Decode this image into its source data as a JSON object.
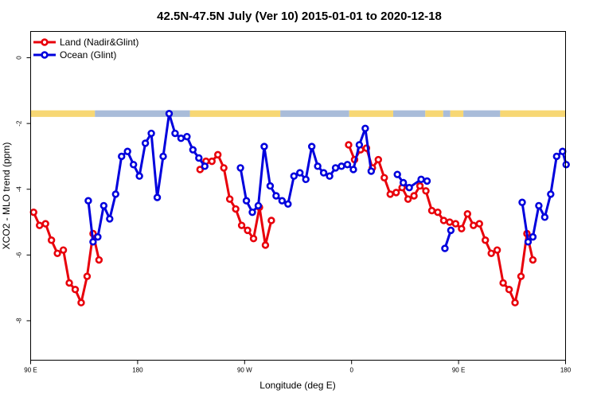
{
  "chart_data": {
    "type": "line",
    "title": "42.5N-47.5N July (Ver 10)   2015-01-01 to 2020-12-18",
    "xlabel": "Longitude (deg E)",
    "ylabel": "XCO2 - MLO trend (ppm)",
    "xlim": [
      90,
      540
    ],
    "ylim": [
      -9.2,
      0.8
    ],
    "x_ticks": [
      {
        "value": 90,
        "label": "90 E"
      },
      {
        "value": 180,
        "label": "180"
      },
      {
        "value": 270,
        "label": "90 W"
      },
      {
        "value": 360,
        "label": "0"
      },
      {
        "value": 450,
        "label": "90 E"
      },
      {
        "value": 540,
        "label": "180"
      }
    ],
    "y_ticks": [
      {
        "value": 0,
        "label": "0"
      },
      {
        "value": -2,
        "label": "-2"
      },
      {
        "value": -4,
        "label": "-4"
      },
      {
        "value": -6,
        "label": "-6"
      },
      {
        "value": -8,
        "label": "-8"
      }
    ],
    "legend_position": "top-left",
    "land_mask": {
      "y_range": [
        -1.8,
        -1.6
      ],
      "land_color": "#f7d774",
      "ocean_color": "#a9bcd9",
      "land_segments": [
        [
          90,
          144
        ],
        [
          224,
          300
        ],
        [
          358,
          395
        ],
        [
          422,
          437
        ],
        [
          443,
          454
        ],
        [
          485,
          540
        ]
      ],
      "ocean_segments": [
        [
          144,
          224
        ],
        [
          300,
          358
        ],
        [
          395,
          422
        ],
        [
          437,
          443
        ],
        [
          454,
          485
        ]
      ]
    },
    "series": [
      {
        "name": "Land (Nadir&Glint)",
        "color": "#e8000b",
        "segments": [
          [
            [
              92.5,
              -4.7
            ],
            [
              97.5,
              -5.1
            ],
            [
              102.5,
              -5.05
            ],
            [
              107.5,
              -5.55
            ],
            [
              112.5,
              -5.95
            ],
            [
              117.5,
              -5.85
            ],
            [
              122.5,
              -6.85
            ],
            [
              127.5,
              -7.05
            ],
            [
              132.5,
              -7.45
            ],
            [
              137.5,
              -6.65
            ],
            [
              142.5,
              -5.35
            ],
            [
              147.5,
              -6.15
            ]
          ],
          [
            [
              232.5,
              -3.4
            ],
            [
              237.5,
              -3.15
            ],
            [
              242.5,
              -3.15
            ],
            [
              247.5,
              -2.95
            ],
            [
              252.5,
              -3.35
            ],
            [
              257.5,
              -4.3
            ],
            [
              262.5,
              -4.6
            ],
            [
              267.5,
              -5.1
            ],
            [
              272.5,
              -5.25
            ],
            [
              277.5,
              -5.5
            ],
            [
              282.5,
              -4.55
            ],
            [
              287.5,
              -5.7
            ],
            [
              292.5,
              -4.95
            ]
          ],
          [
            [
              357.5,
              -2.65
            ],
            [
              362.5,
              -3.1
            ],
            [
              367.5,
              -2.8
            ],
            [
              372.5,
              -2.75
            ],
            [
              377.5,
              -3.35
            ],
            [
              382.5,
              -3.1
            ],
            [
              387.5,
              -3.65
            ],
            [
              392.5,
              -4.15
            ],
            [
              397.5,
              -4.1
            ],
            [
              402.5,
              -3.95
            ],
            [
              407.5,
              -4.3
            ],
            [
              412.5,
              -4.2
            ],
            [
              417.5,
              -3.9
            ],
            [
              422.5,
              -4.05
            ],
            [
              427.5,
              -4.65
            ],
            [
              432.5,
              -4.7
            ],
            [
              437.5,
              -4.95
            ],
            [
              442.5,
              -5.0
            ],
            [
              447.5,
              -5.05
            ],
            [
              452.5,
              -5.2
            ],
            [
              457.5,
              -4.75
            ],
            [
              462.5,
              -5.1
            ],
            [
              467.5,
              -5.05
            ],
            [
              472.5,
              -5.55
            ],
            [
              477.5,
              -5.95
            ],
            [
              482.5,
              -5.85
            ],
            [
              487.5,
              -6.85
            ],
            [
              492.5,
              -7.05
            ],
            [
              497.5,
              -7.45
            ],
            [
              502.5,
              -6.65
            ],
            [
              507.5,
              -5.35
            ],
            [
              512.5,
              -6.15
            ]
          ]
        ]
      },
      {
        "name": "Ocean (Glint)",
        "color": "#0000dd",
        "segments": [
          [
            [
              138.5,
              -4.35
            ],
            [
              142.5,
              -5.6
            ],
            [
              146.5,
              -5.45
            ],
            [
              151.5,
              -4.5
            ],
            [
              156.5,
              -4.9
            ],
            [
              161.5,
              -4.15
            ],
            [
              166.5,
              -3.0
            ],
            [
              171.5,
              -2.85
            ],
            [
              176.5,
              -3.25
            ],
            [
              181.5,
              -3.6
            ],
            [
              186.5,
              -2.6
            ],
            [
              191.5,
              -2.3
            ],
            [
              196.5,
              -4.25
            ],
            [
              201.5,
              -3.0
            ],
            [
              206.5,
              -1.7
            ],
            [
              211.5,
              -2.3
            ],
            [
              216.5,
              -2.45
            ],
            [
              221.5,
              -2.4
            ],
            [
              226.5,
              -2.8
            ],
            [
              231.5,
              -3.05
            ],
            [
              236.5,
              -3.3
            ]
          ],
          [
            [
              266.5,
              -3.35
            ],
            [
              271.5,
              -4.35
            ],
            [
              276.5,
              -4.7
            ],
            [
              281.5,
              -4.5
            ],
            [
              286.5,
              -2.7
            ],
            [
              291.5,
              -3.9
            ],
            [
              296.5,
              -4.2
            ],
            [
              301.5,
              -4.35
            ],
            [
              306.5,
              -4.45
            ],
            [
              311.5,
              -3.6
            ],
            [
              316.5,
              -3.5
            ],
            [
              321.5,
              -3.7
            ],
            [
              326.5,
              -2.7
            ],
            [
              331.5,
              -3.3
            ],
            [
              336.5,
              -3.5
            ],
            [
              341.5,
              -3.6
            ],
            [
              346.5,
              -3.35
            ],
            [
              351.5,
              -3.3
            ],
            [
              356.5,
              -3.25
            ],
            [
              361.5,
              -3.4
            ],
            [
              366.5,
              -2.65
            ],
            [
              371.5,
              -2.15
            ],
            [
              376.5,
              -3.45
            ]
          ],
          [
            [
              398.5,
              -3.55
            ],
            [
              403.5,
              -3.8
            ],
            [
              408.5,
              -3.95
            ],
            [
              418.5,
              -3.7
            ],
            [
              423.5,
              -3.75
            ]
          ],
          [
            [
              438.5,
              -5.8
            ],
            [
              443.5,
              -5.25
            ]
          ],
          [
            [
              503.5,
              -4.4
            ],
            [
              508.5,
              -5.6
            ],
            [
              512.5,
              -5.45
            ],
            [
              517.5,
              -4.5
            ],
            [
              522.5,
              -4.85
            ],
            [
              527.5,
              -4.15
            ],
            [
              532.5,
              -3.0
            ],
            [
              537.5,
              -2.85
            ],
            [
              540.5,
              -3.25
            ]
          ]
        ]
      }
    ]
  }
}
